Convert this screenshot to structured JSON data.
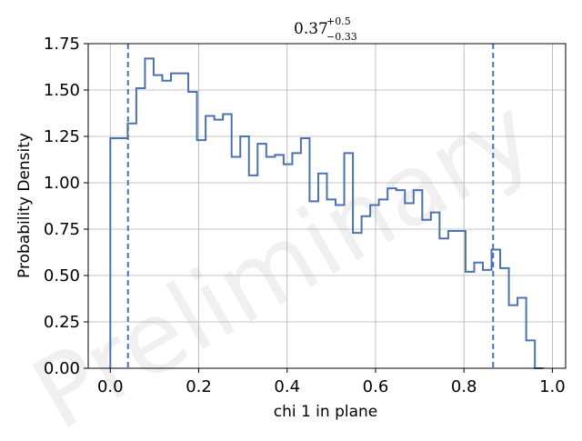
{
  "chart_data": {
    "type": "histogram",
    "title": {
      "value": "0.37",
      "upper": "+0.5",
      "lower": "−0.33"
    },
    "xlabel": "chi 1 in plane",
    "ylabel": "Probability Density",
    "watermark": "Preliminary",
    "xlim": [
      -0.05,
      1.03
    ],
    "ylim": [
      0,
      1.75
    ],
    "xticks": [
      "0.0",
      "0.2",
      "0.4",
      "0.6",
      "0.8",
      "1.0"
    ],
    "yticks": [
      "0.00",
      "0.25",
      "0.50",
      "0.75",
      "1.00",
      "1.25",
      "1.50",
      "1.75"
    ],
    "xtick_values": [
      0.0,
      0.2,
      0.4,
      0.6,
      0.8,
      1.0
    ],
    "ytick_values": [
      0.0,
      0.25,
      0.5,
      0.75,
      1.0,
      1.25,
      1.5,
      1.75
    ],
    "grid": true,
    "line_color": "#4c72b0",
    "grid_color": "#b0b0b0",
    "vlines": [
      0.04,
      0.866
    ],
    "bin_edges": [
      0.0,
      0.0196,
      0.0392,
      0.0588,
      0.0784,
      0.098,
      0.1176,
      0.1372,
      0.1568,
      0.1764,
      0.196,
      0.2156,
      0.2352,
      0.2548,
      0.2744,
      0.294,
      0.3136,
      0.3332,
      0.3528,
      0.3724,
      0.392,
      0.4116,
      0.4312,
      0.4508,
      0.4704,
      0.49,
      0.5096,
      0.5292,
      0.5488,
      0.5684,
      0.588,
      0.6076,
      0.6272,
      0.6468,
      0.6664,
      0.686,
      0.7056,
      0.7252,
      0.7448,
      0.7644,
      0.784,
      0.8036,
      0.8232,
      0.8428,
      0.8624,
      0.882,
      0.9016,
      0.9212,
      0.9408,
      0.9604,
      0.98
    ],
    "values": [
      1.24,
      1.24,
      1.32,
      1.51,
      1.67,
      1.58,
      1.55,
      1.59,
      1.59,
      1.49,
      1.23,
      1.36,
      1.34,
      1.37,
      1.14,
      1.25,
      1.04,
      1.21,
      1.14,
      1.15,
      1.1,
      1.16,
      1.24,
      0.9,
      1.05,
      0.91,
      0.88,
      1.16,
      0.73,
      0.82,
      0.88,
      0.91,
      0.97,
      0.96,
      0.89,
      0.96,
      0.8,
      0.84,
      0.7,
      0.74,
      0.74,
      0.52,
      0.57,
      0.53,
      0.64,
      0.54,
      0.34,
      0.38,
      0.15,
      0.0
    ]
  }
}
